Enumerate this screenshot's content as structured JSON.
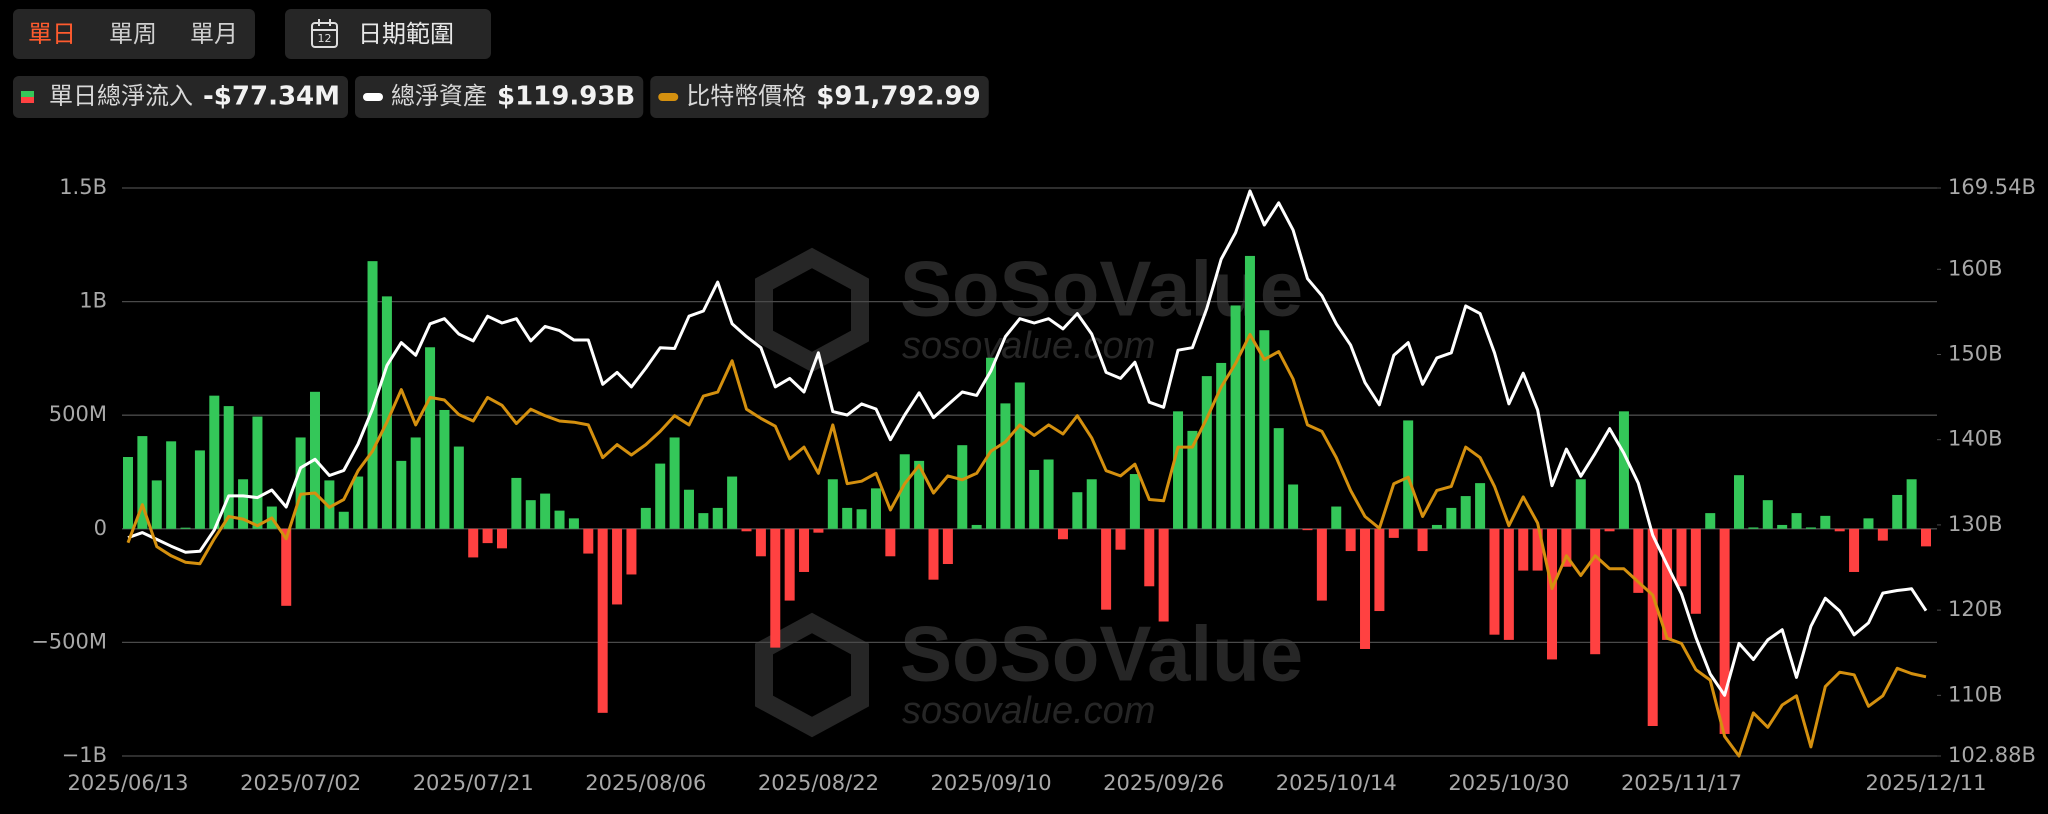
{
  "controls": {
    "tabs": [
      "單日",
      "單周",
      "單月"
    ],
    "active_tab": 0,
    "calendar_day": "12",
    "date_range": "日期範圍"
  },
  "watermark": {
    "brand": "SoSoValue",
    "site": "sosovalue.com"
  },
  "chart_data": {
    "type": "bar_line",
    "categories": [
      "2025/06/13",
      null,
      null,
      null,
      null,
      null,
      null,
      null,
      null,
      null,
      null,
      null,
      "2025/07/02",
      null,
      null,
      null,
      null,
      null,
      null,
      null,
      null,
      null,
      null,
      null,
      "2025/07/21",
      null,
      null,
      null,
      null,
      null,
      null,
      null,
      null,
      null,
      null,
      null,
      "2025/08/06",
      null,
      null,
      null,
      null,
      null,
      null,
      null,
      null,
      null,
      null,
      null,
      "2025/08/22",
      null,
      null,
      null,
      null,
      null,
      null,
      null,
      null,
      null,
      null,
      null,
      "2025/09/10",
      null,
      null,
      null,
      null,
      null,
      null,
      null,
      null,
      null,
      null,
      null,
      "2025/09/26",
      null,
      null,
      null,
      null,
      null,
      null,
      null,
      null,
      null,
      null,
      null,
      "2025/10/14",
      null,
      null,
      null,
      null,
      null,
      null,
      null,
      null,
      null,
      null,
      null,
      "2025/10/30",
      null,
      null,
      null,
      null,
      null,
      null,
      null,
      null,
      null,
      null,
      null,
      "2025/11/17",
      null,
      null,
      null,
      null,
      null,
      null,
      null,
      null,
      null,
      null,
      null,
      null,
      null,
      null,
      null,
      null,
      "2025/12/11"
    ],
    "ylim": [
      -1000,
      1500
    ],
    "yticks": [
      {
        "value": -1000,
        "label": "−1B"
      },
      {
        "value": -500,
        "label": "−500M"
      },
      0,
      {
        "value": 500,
        "label": "500M"
      },
      {
        "value": 1000,
        "label": "1B"
      },
      {
        "value": 1500,
        "label": "1.5B"
      }
    ],
    "y2lim": [
      102.88,
      169.54
    ],
    "y2ticks": [
      {
        "value": 102.88,
        "label": "102.88B"
      },
      {
        "value": 110,
        "label": "110B"
      },
      {
        "value": 120,
        "label": "120B"
      },
      {
        "value": 130,
        "label": "130B"
      },
      {
        "value": 140,
        "label": "140B"
      },
      {
        "value": 150,
        "label": "150B"
      },
      {
        "value": 160,
        "label": "160B"
      },
      {
        "value": 169.54,
        "label": "169.54B"
      }
    ],
    "grid": true,
    "series": [
      {
        "name": "單日總淨流入",
        "type": "bar",
        "axis": "y",
        "color": "#34c759",
        "negative_color": "#ff4141",
        "latest_label": "-$77.34M",
        "values": [
          316,
          408,
          213,
          385,
          5,
          345,
          586,
          540,
          218,
          494,
          98,
          -339,
          402,
          603,
          213,
          75,
          230,
          1178,
          1023,
          299,
          402,
          799,
          523,
          362,
          -126,
          -63,
          -86,
          224,
          126,
          155,
          80,
          46,
          -109,
          -810,
          -333,
          -201,
          92,
          287,
          402,
          172,
          69,
          92,
          230,
          -11,
          -121,
          -523,
          -316,
          -190,
          -17,
          218,
          92,
          86,
          178,
          -121,
          328,
          299,
          -224,
          -155,
          368,
          17,
          753,
          552,
          644,
          259,
          305,
          -46,
          161,
          218,
          -356,
          -92,
          241,
          -253,
          -408,
          517,
          431,
          672,
          730,
          983,
          1201,
          874,
          443,
          195,
          -6,
          -316,
          98,
          -98,
          -529,
          -362,
          -40,
          477,
          -98,
          17,
          92,
          144,
          201,
          -466,
          -489,
          -184,
          -184,
          -575,
          -167,
          218,
          -552,
          -11,
          517,
          -282,
          -868,
          -489,
          -253,
          -374,
          69,
          -903,
          236,
          6,
          126,
          17,
          69,
          6,
          57,
          -11,
          -190,
          46,
          -52,
          149,
          218,
          -77.34
        ]
      },
      {
        "name": "總淨資產",
        "type": "line",
        "axis": "y2",
        "color": "#ffffff",
        "latest_label": "$119.93B",
        "values": [
          128.5,
          129.1,
          128.3,
          127.5,
          126.8,
          126.9,
          129.4,
          133.4,
          133.4,
          133.2,
          134.1,
          132.1,
          136.7,
          137.7,
          135.8,
          136.4,
          139.5,
          143.6,
          148.7,
          151.4,
          149.9,
          153.6,
          154.2,
          152.4,
          151.6,
          154.5,
          153.7,
          154.2,
          151.6,
          153.3,
          152.8,
          151.7,
          151.7,
          146.5,
          147.9,
          146.2,
          148.4,
          150.8,
          150.7,
          154.5,
          155.1,
          158.5,
          153.6,
          152.1,
          150.8,
          146.2,
          147.2,
          145.6,
          150.2,
          143.3,
          142.9,
          144.2,
          143.6,
          140.0,
          142.9,
          145.5,
          142.6,
          144.1,
          145.6,
          145.2,
          148.1,
          152.1,
          154.2,
          153.7,
          154.2,
          153.0,
          154.8,
          152.4,
          147.9,
          147.2,
          149.1,
          144.4,
          143.8,
          150.5,
          150.8,
          155.4,
          161.2,
          164.3,
          169.2,
          165.2,
          167.8,
          164.6,
          158.9,
          156.9,
          153.6,
          151.1,
          146.7,
          144.1,
          149.9,
          151.4,
          146.5,
          149.6,
          150.2,
          155.7,
          154.8,
          150.2,
          144.2,
          147.8,
          143.5,
          134.6,
          138.9,
          135.7,
          138.4,
          141.3,
          138.4,
          134.9,
          128.8,
          125.3,
          121.9,
          116.8,
          112.5,
          110.0,
          116.1,
          114.2,
          116.5,
          117.7,
          112.1,
          118.1,
          121.4,
          119.9,
          117.1,
          118.5,
          122.0,
          122.3,
          122.5,
          119.93
        ]
      },
      {
        "name": "比特幣價格",
        "type": "line",
        "color": "#d4900f",
        "latest_label": "$91,792.99",
        "values": [
          104760,
          108430,
          104380,
          103490,
          102860,
          102730,
          105140,
          107290,
          107040,
          106400,
          107160,
          105140,
          109440,
          109570,
          108180,
          108940,
          111720,
          113620,
          116410,
          119570,
          116150,
          118810,
          118560,
          117160,
          116530,
          118810,
          118050,
          116280,
          117670,
          117040,
          116530,
          116410,
          116150,
          112990,
          114250,
          113240,
          114250,
          115520,
          117040,
          116150,
          118940,
          119320,
          122350,
          117670,
          116780,
          116030,
          112860,
          114000,
          111470,
          116150,
          110460,
          110710,
          111470,
          107920,
          110460,
          112230,
          109570,
          111220,
          110840,
          111470,
          113620,
          114510,
          116150,
          115140,
          116150,
          115270,
          117040,
          114890,
          111720,
          111220,
          112350,
          108940,
          108810,
          114000,
          114000,
          116780,
          119820,
          122100,
          124890,
          122480,
          123240,
          120580,
          116150,
          115520,
          112990,
          109820,
          107290,
          106150,
          110460,
          111090,
          107290,
          109820,
          110200,
          114000,
          112990,
          110200,
          106400,
          109190,
          106660,
          100330,
          103490,
          101590,
          103490,
          102230,
          102230,
          100960,
          99700,
          95520,
          95010,
          92480,
          91470,
          86030,
          84130,
          88300,
          86910,
          89060,
          89950,
          85010,
          90840,
          92230,
          91980,
          88940,
          89950,
          92610,
          92100,
          91792.99
        ]
      }
    ]
  }
}
